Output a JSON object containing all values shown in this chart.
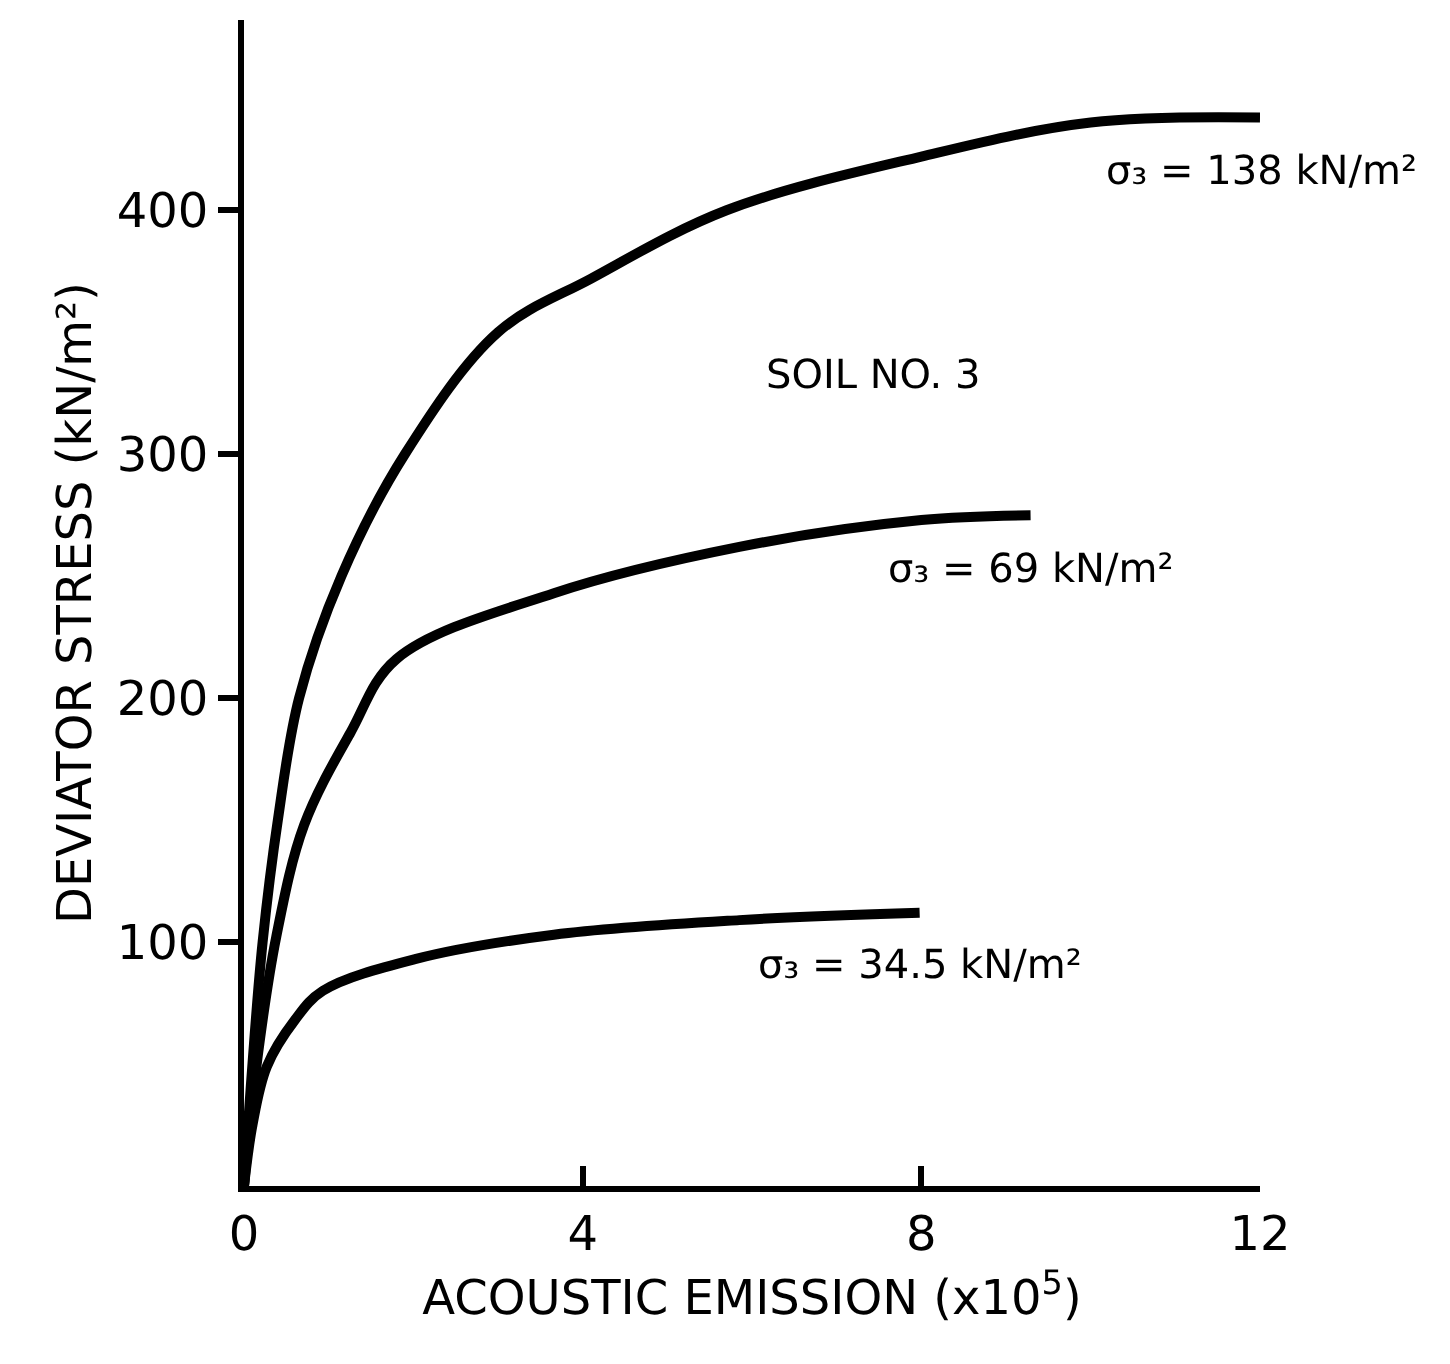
{
  "chart_data": {
    "type": "line",
    "xlabel": "ACOUSTIC EMISSION (x10$^{5}$)",
    "ylabel": "DEVIATOR STRESS (kN/m²)",
    "xlim": [
      0,
      12
    ],
    "xticks": [
      0,
      4,
      8,
      12
    ],
    "ylim": [
      0,
      478
    ],
    "yticks": [
      100,
      200,
      300,
      400
    ],
    "marker": "none",
    "line_style": "solid",
    "series": [
      {
        "color": "#000000",
        "x": [
          0,
          0.1,
          0.22,
          0.4,
          0.65,
          1.15,
          1.9,
          3.0,
          4.1,
          5.7,
          8.0,
          10.0,
          12.0
        ],
        "values": [
          0,
          50,
          100,
          150,
          200,
          250,
          300,
          350,
          372,
          400,
          422,
          436,
          438
        ]
      },
      {
        "color": "#000000",
        "x": [
          0,
          0.15,
          0.38,
          0.71,
          1.26,
          1.8,
          3.66,
          5.85,
          8.0,
          9.29
        ],
        "values": [
          0,
          50,
          102,
          148,
          186,
          216,
          243,
          262,
          273,
          275
        ]
      },
      {
        "color": "#000000",
        "x": [
          0,
          0.1,
          0.27,
          0.6,
          0.93,
          2.02,
          3.66,
          5.85,
          7.98
        ],
        "values": [
          0,
          25,
          49,
          68,
          80,
          93,
          103,
          109,
          112
        ]
      }
    ],
    "annotations": [
      {
        "text": "σ₃ = 138 kN/m²",
        "x": 12.0,
        "y": 438
      },
      {
        "text": "σ₃ = 69 kN/m²",
        "x": 9.29,
        "y": 275
      },
      {
        "text": "σ₃ = 34.5 kN/m²",
        "x": 7.98,
        "y": 112
      },
      "SOIL NO. 3"
    ]
  }
}
